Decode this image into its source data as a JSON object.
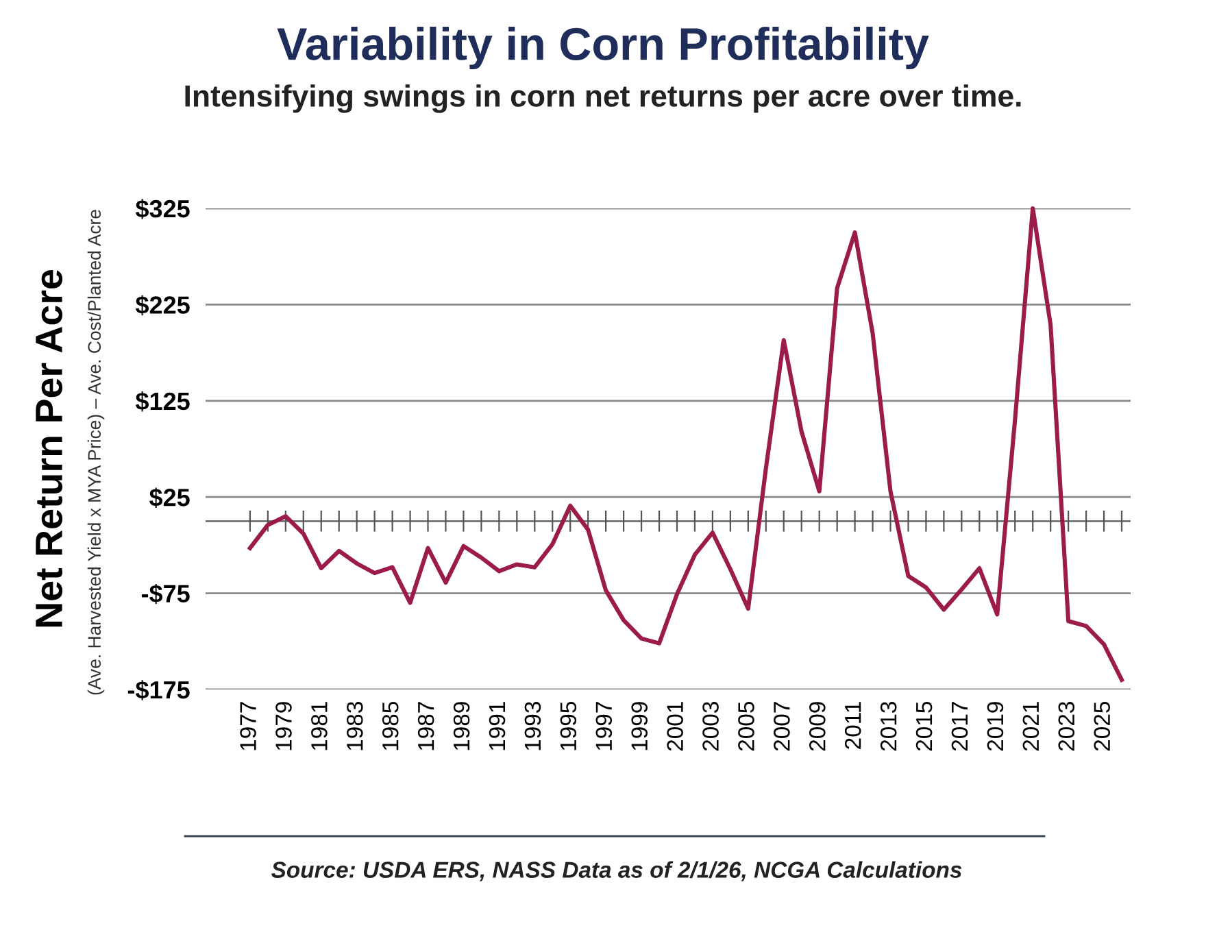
{
  "chart_data": {
    "type": "line",
    "title": "Variability in Corn Profitability",
    "subtitle": "Intensifying swings in corn net returns per acre over time.",
    "ylabel": "Net Return Per Acre",
    "annotations": [
      "(Ave. Harvested Yield x MYA Price) – Ave. Cost/Planted Acre",
      "Source: USDA ERS, NASS Data as of 2/1/26, NCGA Calculations"
    ],
    "x": [
      1977,
      1978,
      1979,
      1980,
      1981,
      1982,
      1983,
      1984,
      1985,
      1986,
      1987,
      1988,
      1989,
      1990,
      1991,
      1992,
      1993,
      1994,
      1995,
      1996,
      1997,
      1998,
      1999,
      2000,
      2001,
      2002,
      2003,
      2004,
      2005,
      2006,
      2007,
      2008,
      2009,
      2010,
      2011,
      2012,
      2013,
      2014,
      2015,
      2016,
      2017,
      2018,
      2019,
      2020,
      2021,
      2022,
      2023,
      2024,
      2025,
      2026
    ],
    "series": [
      {
        "color": "#9b1c4a",
        "values": [
          -28,
          -4,
          5,
          -13,
          -49,
          -31,
          -44,
          -54,
          -48,
          -85,
          -28,
          -64,
          -26,
          -38,
          -52,
          -45,
          -48,
          -24,
          16,
          -9,
          -72,
          -103,
          -122,
          -127,
          -76,
          -35,
          -12,
          -50,
          -91,
          55,
          188,
          93,
          31,
          242,
          300,
          195,
          31,
          -57,
          -69,
          -92,
          -71,
          -49,
          -97,
          105,
          325,
          204,
          -104,
          -109,
          -128,
          -165
        ]
      }
    ],
    "xlim": [
      1974.5,
      2026.5
    ],
    "xticks": [
      1977,
      1979,
      1981,
      1983,
      1985,
      1987,
      1989,
      1991,
      1993,
      1995,
      1997,
      1999,
      2001,
      2003,
      2005,
      2007,
      2009,
      2011,
      2013,
      2015,
      2017,
      2019,
      2021,
      2023,
      2025
    ],
    "ref_lines": [
      {
        "axis": "y",
        "value": 0,
        "color": "#555555"
      }
    ],
    "ylim": [
      -175,
      325
    ],
    "yticks": [
      {
        "value": -175,
        "label": "-$175"
      },
      {
        "value": -75,
        "label": "-$75"
      },
      {
        "value": 25,
        "label": "$25"
      },
      {
        "value": 125,
        "label": "$125"
      },
      {
        "value": 225,
        "label": "$225"
      },
      {
        "value": 325,
        "label": "$325"
      }
    ],
    "grid": "y",
    "marker": "none",
    "line_style": "solid"
  }
}
